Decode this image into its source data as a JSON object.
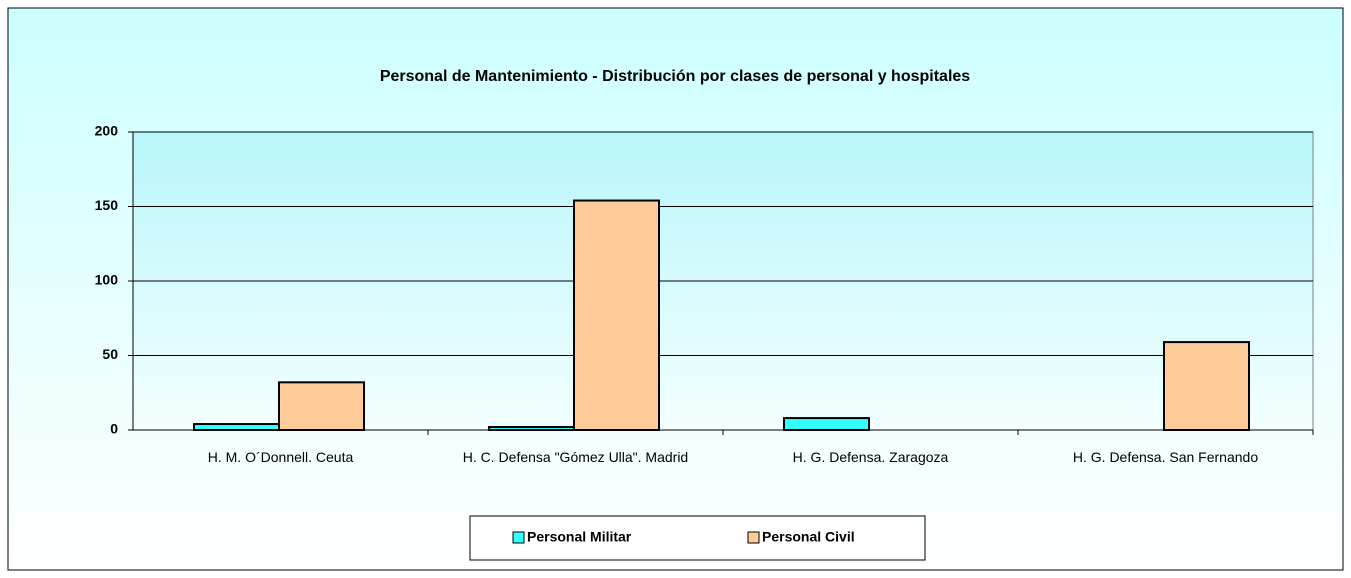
{
  "chart_data": {
    "type": "bar",
    "title": "Personal de Mantenimiento - Distribución por clases de personal y hospitales",
    "categories": [
      "H. M. O´Donnell. Ceuta",
      "H. C. Defensa \"Gómez Ulla\". Madrid",
      "H. G. Defensa. Zaragoza",
      "H. G. Defensa. San Fernando"
    ],
    "series": [
      {
        "name": "Personal Militar",
        "color": "#33ffff",
        "values": [
          4,
          2,
          8,
          0
        ]
      },
      {
        "name": "Personal Civil",
        "color": "#ffcc99",
        "values": [
          32,
          154,
          0,
          59
        ]
      }
    ],
    "ylim": [
      0,
      200
    ],
    "yticks": [
      0,
      50,
      100,
      150,
      200
    ],
    "grid": true,
    "legend": "bottom"
  }
}
